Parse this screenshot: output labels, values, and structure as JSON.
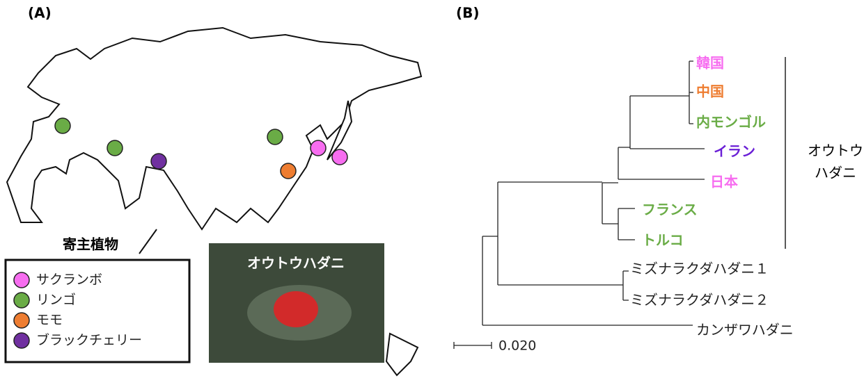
{
  "panel_a": {
    "label": "(A)",
    "legend": {
      "title": "寄主植物",
      "items": [
        {
          "label": "サクランボ",
          "color": "#f76df0"
        },
        {
          "label": "リンゴ",
          "color": "#6aac46"
        },
        {
          "label": "モモ",
          "color": "#ee7d31"
        },
        {
          "label": "ブラックチェリー",
          "color": "#7030a0"
        }
      ]
    },
    "photo_caption": "オウトウハダニ"
  },
  "panel_b": {
    "label": "(B)",
    "leaves": [
      {
        "label": "韓国",
        "color": "#f76df0"
      },
      {
        "label": "中国",
        "color": "#ee7d31"
      },
      {
        "label": "内モンゴル",
        "color": "#6aac46"
      },
      {
        "label": "イラン",
        "color": "#6a1fd6"
      },
      {
        "label": "日本",
        "color": "#f76df0"
      },
      {
        "label": "フランス",
        "color": "#6aac46"
      },
      {
        "label": "トルコ",
        "color": "#6aac46"
      },
      {
        "label": "ミズナラクダハダニ１",
        "color": "#222222"
      },
      {
        "label": "ミズナラクダハダニ２",
        "color": "#222222"
      },
      {
        "label": "カンザワハダニ",
        "color": "#222222"
      }
    ],
    "clade_label": [
      "オウトウ",
      "ハダニ"
    ],
    "scale_bar": "0.020"
  }
}
